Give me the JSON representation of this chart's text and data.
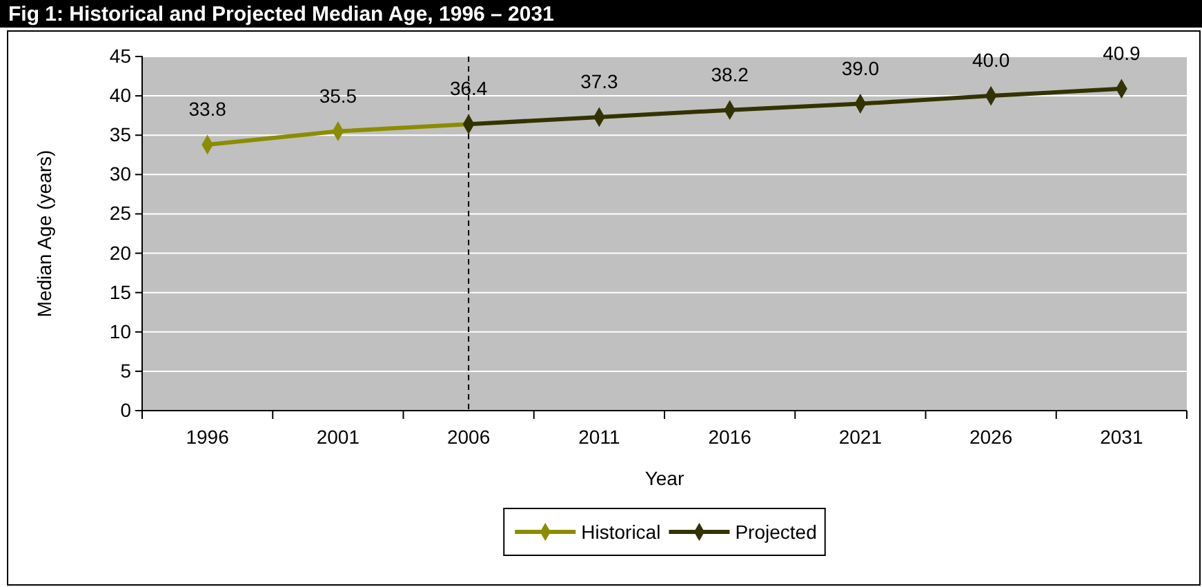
{
  "chart_data": {
    "type": "line",
    "title": "Fig 1: Historical and Projected Median Age, 1996 – 2031",
    "xlabel": "Year",
    "ylabel": "Median Age (years)",
    "categories": [
      "1996",
      "2001",
      "2006",
      "2011",
      "2016",
      "2021",
      "2026",
      "2031"
    ],
    "series": [
      {
        "name": "Historical",
        "color": "#8c8c00",
        "values": [
          33.8,
          35.5,
          36.4,
          null,
          null,
          null,
          null,
          null
        ],
        "value_labels": [
          "33.8",
          "35.5",
          "36.4",
          null,
          null,
          null,
          null,
          null
        ]
      },
      {
        "name": "Projected",
        "color": "#333300",
        "values": [
          null,
          null,
          36.4,
          37.3,
          38.2,
          39.0,
          40.0,
          40.9
        ],
        "value_labels": [
          null,
          null,
          null,
          "37.3",
          "38.2",
          "39.0",
          "40.0",
          "40.9"
        ]
      }
    ],
    "ylim": [
      0,
      45
    ],
    "yticks": [
      0,
      5,
      10,
      15,
      20,
      25,
      30,
      35,
      40,
      45
    ],
    "grid": "y",
    "legend": "bottom",
    "marker": "diamond",
    "line_style": "solid",
    "ref_lines": [
      {
        "axis": "x",
        "value": "2006",
        "color": "#000000",
        "line_style": "dashed"
      }
    ]
  }
}
